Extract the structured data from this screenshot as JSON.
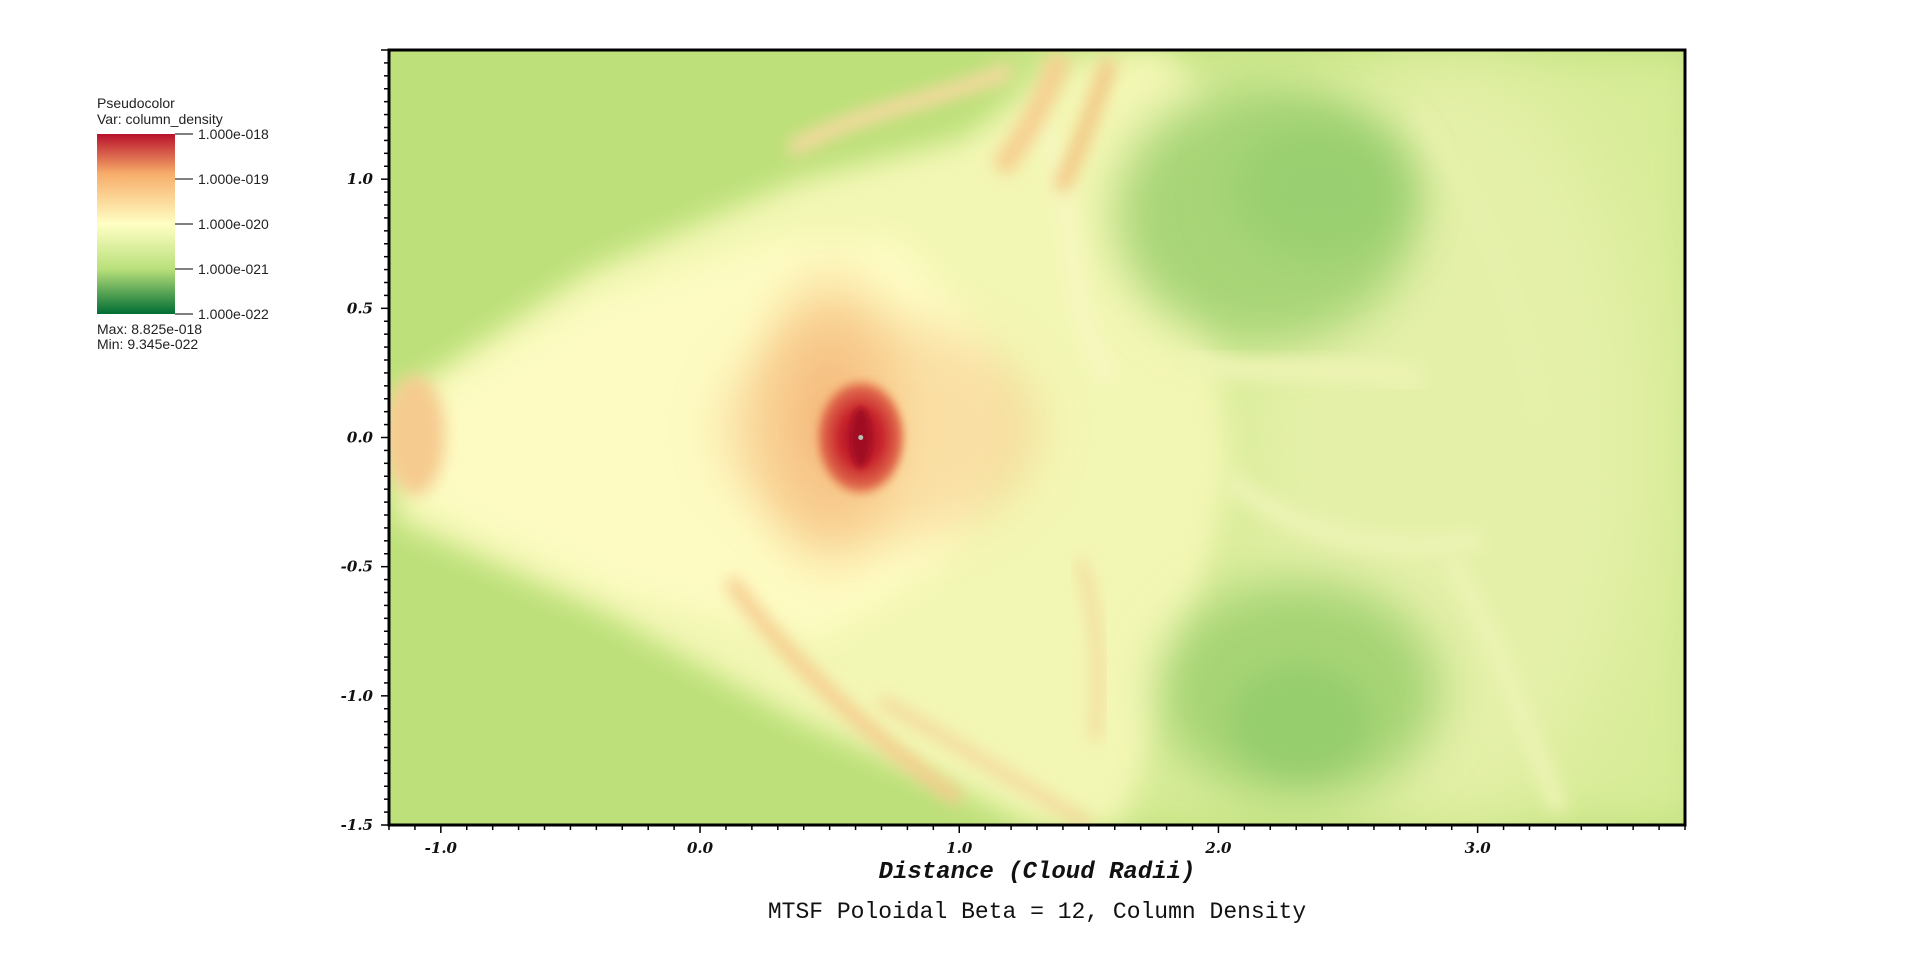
{
  "chart_data": {
    "type": "heatmap",
    "title": "MTSF Poloidal Beta = 12, Column Density",
    "xlabel": "Distance (Cloud Radii)",
    "ylabel": "",
    "xlim": [
      -1.2,
      3.8
    ],
    "ylim": [
      -1.5,
      1.5
    ],
    "x_ticks": [
      -1.0,
      0.0,
      1.0,
      2.0,
      3.0
    ],
    "x_tick_labels": [
      "-1.0",
      "0.0",
      "1.0",
      "2.0",
      "3.0"
    ],
    "y_ticks": [
      1.0,
      0.5,
      0.0,
      -0.5,
      -1.0,
      -1.5
    ],
    "y_tick_labels": [
      "1.0",
      "0.5",
      "0.0",
      "-0.5",
      "-1.0",
      "-1.5"
    ],
    "colorscale": "log",
    "colormap": [
      "#006d33",
      "#b9e07b",
      "#ffffc4",
      "#f7ad6a",
      "#c0172a"
    ],
    "legend": {
      "plot_type": "Pseudocolor",
      "variable": "Var: column_density",
      "levels": [
        "1.000e-018",
        "1.000e-019",
        "1.000e-020",
        "1.000e-021",
        "1.000e-022"
      ],
      "max": "Max:  8.825e-018",
      "min": "Min:  9.345e-022",
      "placement": "top-left"
    },
    "features": [
      {
        "shape": "dense-core",
        "x": 0.62,
        "y": 0.0,
        "level": "1.000e-018"
      },
      {
        "shape": "bow-shock-fan",
        "x": 0.3,
        "y": 0.0,
        "level": "1.000e-020"
      },
      {
        "shape": "low-density-lobe",
        "x": 2.1,
        "y": 0.8,
        "level": "1.000e-021"
      },
      {
        "shape": "low-density-lobe",
        "x": 2.3,
        "y": -1.05,
        "level": "1.000e-021"
      }
    ]
  }
}
